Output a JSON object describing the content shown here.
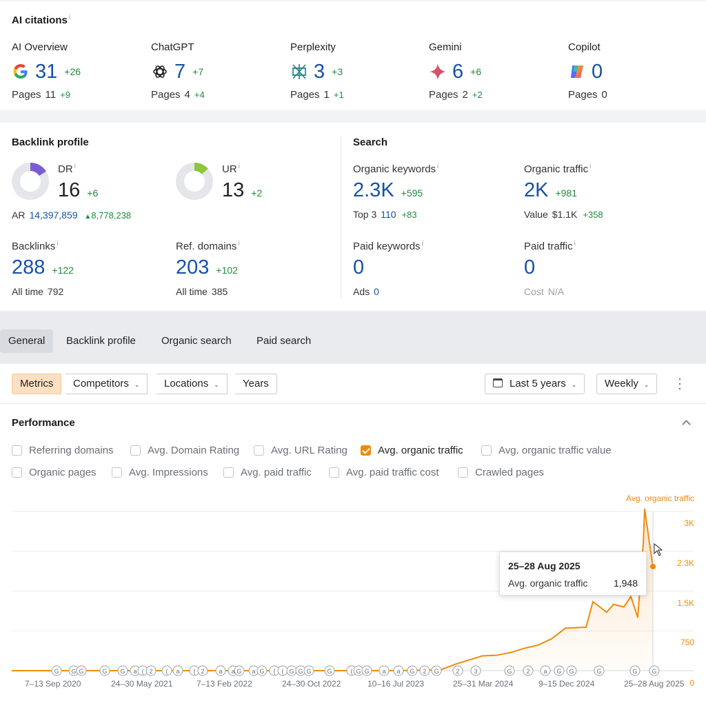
{
  "ai_citations": {
    "title": "AI citations",
    "info": "i",
    "pages_label": "Pages",
    "engines": [
      {
        "name": "AI Overview",
        "icon": "google-icon",
        "value": "31",
        "delta": "+26",
        "pages": "11",
        "pages_delta": "+9"
      },
      {
        "name": "ChatGPT",
        "icon": "chatgpt-icon",
        "value": "7",
        "delta": "+7",
        "pages": "4",
        "pages_delta": "+4"
      },
      {
        "name": "Perplexity",
        "icon": "perplexity-icon",
        "value": "3",
        "delta": "+3",
        "pages": "1",
        "pages_delta": "+1"
      },
      {
        "name": "Gemini",
        "icon": "gemini-icon",
        "value": "6",
        "delta": "+6",
        "pages": "2",
        "pages_delta": "+2"
      },
      {
        "name": "Copilot",
        "icon": "copilot-icon",
        "value": "0",
        "delta": "",
        "pages": "0",
        "pages_delta": ""
      }
    ]
  },
  "backlink_profile": {
    "title": "Backlink profile",
    "dr": {
      "label": "DR",
      "value": "16",
      "delta": "+6",
      "gauge": 0.16
    },
    "ur": {
      "label": "UR",
      "value": "13",
      "delta": "+2",
      "gauge": 0.13
    },
    "ar": {
      "label": "AR",
      "value": "14,397,859",
      "delta": "8,778,238"
    },
    "backlinks": {
      "label": "Backlinks",
      "value": "288",
      "delta": "+122",
      "sub_label": "All time",
      "sub_value": "792"
    },
    "ref_domains": {
      "label": "Ref. domains",
      "value": "203",
      "delta": "+102",
      "sub_label": "All time",
      "sub_value": "385"
    }
  },
  "search": {
    "title": "Search",
    "organic_keywords": {
      "label": "Organic keywords",
      "value": "2.3K",
      "delta": "+595",
      "sub_label": "Top 3",
      "sub_value": "110",
      "sub_delta": "+83"
    },
    "organic_traffic": {
      "label": "Organic traffic",
      "value": "2K",
      "delta": "+981",
      "sub_label": "Value",
      "sub_value": "$1.1K",
      "sub_delta": "+358"
    },
    "paid_keywords": {
      "label": "Paid keywords",
      "value": "0",
      "sub_label": "Ads",
      "sub_value": "0"
    },
    "paid_traffic": {
      "label": "Paid traffic",
      "value": "0",
      "sub_label": "Cost",
      "sub_value": "N/A"
    }
  },
  "tabs": [
    "General",
    "Backlink profile",
    "Organic search",
    "Paid search"
  ],
  "toolbar": {
    "metrics": "Metrics",
    "competitors": "Competitors",
    "locations": "Locations",
    "years": "Years",
    "range": "Last 5 years",
    "interval": "Weekly"
  },
  "performance": {
    "title": "Performance",
    "checkboxes": [
      {
        "label": "Referring domains",
        "checked": false
      },
      {
        "label": "Avg. Domain Rating",
        "checked": false
      },
      {
        "label": "Avg. URL Rating",
        "checked": false
      },
      {
        "label": "Avg. organic traffic",
        "checked": true
      },
      {
        "label": "Avg. organic traffic value",
        "checked": false
      },
      {
        "label": "Organic pages",
        "checked": false
      },
      {
        "label": "Avg. Impressions",
        "checked": false
      },
      {
        "label": "Avg. paid traffic",
        "checked": false
      },
      {
        "label": "Avg. paid traffic cost",
        "checked": false
      },
      {
        "label": "Crawled pages",
        "checked": false
      }
    ]
  },
  "colors": {
    "accent": "#f08a0c",
    "positive": "#1d8a3a",
    "link": "#1650a8"
  },
  "chart_data": {
    "type": "line",
    "series_name": "Avg. organic traffic",
    "y_ticks": [
      "3K",
      "2.3K",
      "1.5K",
      "750",
      "0"
    ],
    "ylim": [
      0,
      3000
    ],
    "x_ticks": [
      "7–13 Sep 2020",
      "24–30 May 2021",
      "7–13 Feb 2022",
      "24–30 Oct 2022",
      "10–16 Jul 2023",
      "25–31 Mar 2024",
      "9–15 Dec 2024",
      "25–28 Aug 2025"
    ],
    "points": [
      [
        "2020-09",
        0
      ],
      [
        "2021-05",
        0
      ],
      [
        "2022-02",
        0
      ],
      [
        "2022-10",
        0
      ],
      [
        "2023-07",
        0
      ],
      [
        "2023-11",
        20
      ],
      [
        "2023-12",
        120
      ],
      [
        "2024-01",
        200
      ],
      [
        "2024-02",
        280
      ],
      [
        "2024-03",
        290
      ],
      [
        "2024-05",
        340
      ],
      [
        "2024-06",
        420
      ],
      [
        "2024-07",
        480
      ],
      [
        "2024-09",
        600
      ],
      [
        "2024-11",
        800
      ],
      [
        "2024-12",
        820
      ],
      [
        "2025-01",
        1300
      ],
      [
        "2025-02",
        1100
      ],
      [
        "2025-03",
        1250
      ],
      [
        "2025-04",
        1200
      ],
      [
        "2025-05",
        1400
      ],
      [
        "2025-06",
        1000
      ],
      [
        "2025-07",
        2400
      ],
      [
        "2025-08a",
        3050
      ],
      [
        "2025-08b",
        1948
      ]
    ],
    "tooltip": {
      "date": "25–28 Aug 2025",
      "label": "Avg. organic traffic",
      "value": "1,948"
    },
    "annotations_marker": [
      "G",
      "2",
      "a",
      "3"
    ]
  }
}
